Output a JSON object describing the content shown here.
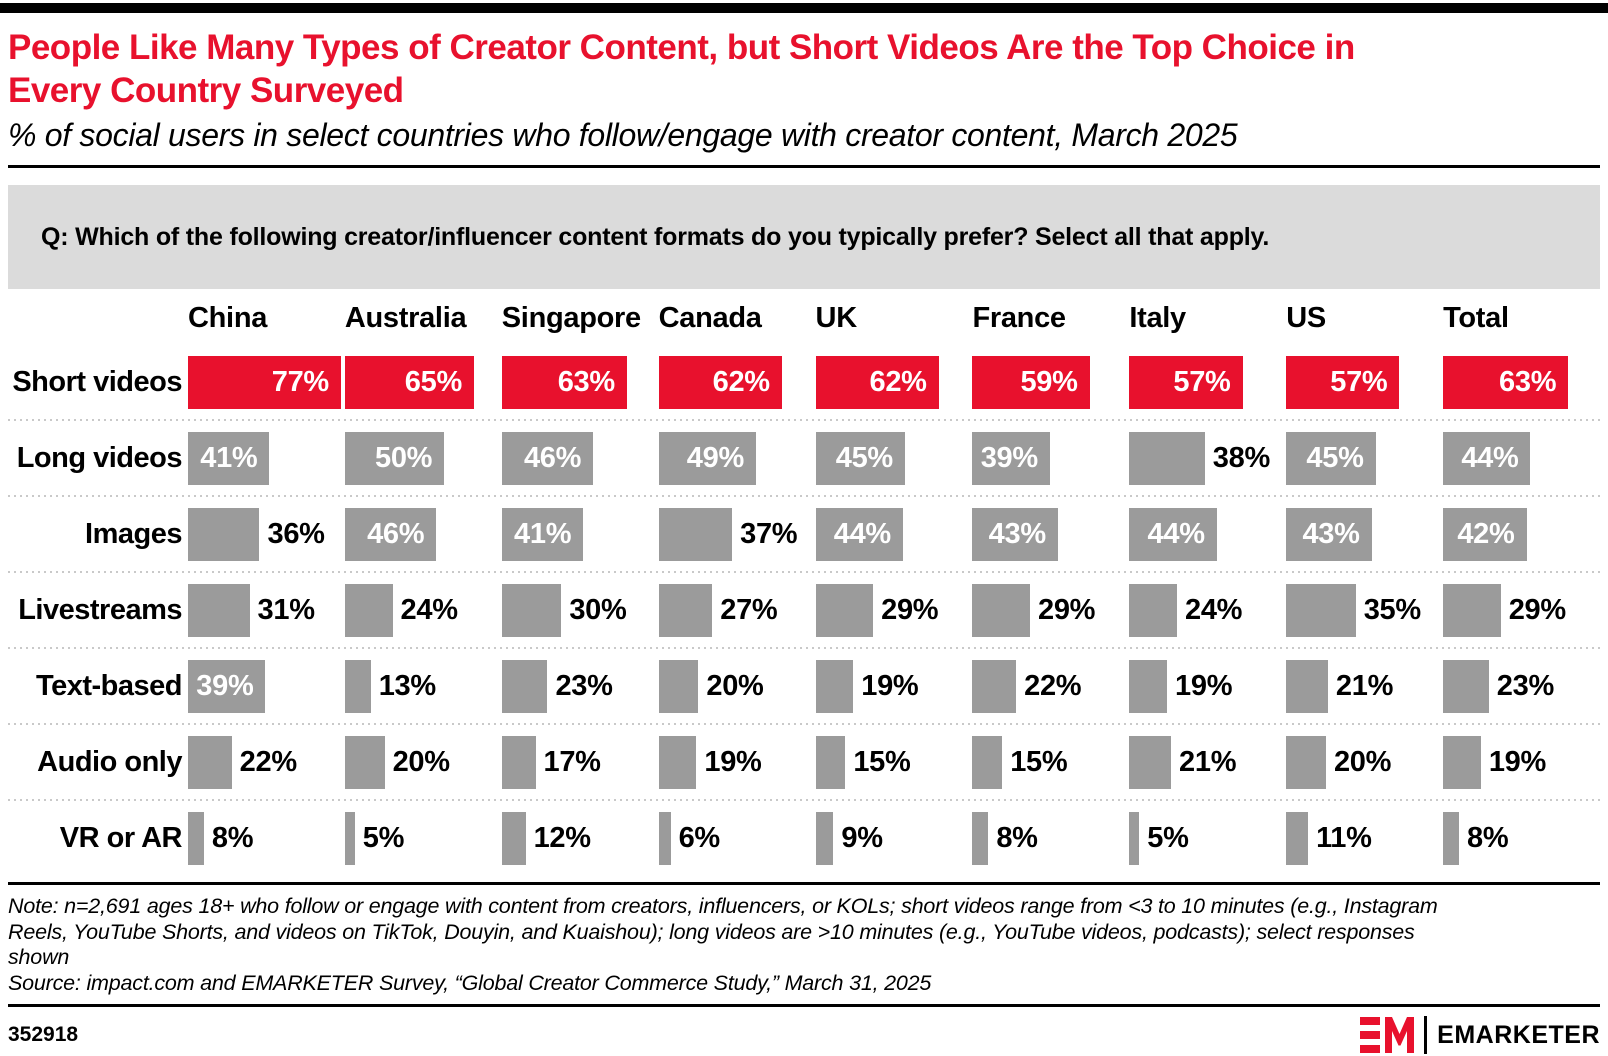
{
  "header": {
    "title_line1": "People Like Many Types of Creator Content, but Short Videos Are the Top Choice in",
    "title_line2": "Every Country Surveyed",
    "subtitle": "% of social users in select countries who follow/engage with creator content, March 2025"
  },
  "question": "Q: Which of the following creator/influencer content formats do you typically prefer? Select all that apply.",
  "chart_data": {
    "type": "bar",
    "orientation": "horizontal",
    "unit": "%",
    "columns": [
      "China",
      "Australia",
      "Singapore",
      "Canada",
      "UK",
      "France",
      "Italy",
      "US",
      "Total"
    ],
    "categories": [
      "Short videos",
      "Long videos",
      "Images",
      "Livestreams",
      "Text-based",
      "Audio only",
      "VR or AR"
    ],
    "series": [
      {
        "name": "Short videos",
        "color": "#e8112d",
        "values": [
          77,
          65,
          63,
          62,
          62,
          59,
          57,
          57,
          63
        ]
      },
      {
        "name": "Long videos",
        "color": "#9b9b9b",
        "values": [
          41,
          50,
          46,
          49,
          45,
          39,
          38,
          45,
          44
        ]
      },
      {
        "name": "Images",
        "color": "#9b9b9b",
        "values": [
          36,
          46,
          41,
          37,
          44,
          43,
          44,
          43,
          42
        ]
      },
      {
        "name": "Livestreams",
        "color": "#9b9b9b",
        "values": [
          31,
          24,
          30,
          27,
          29,
          29,
          24,
          35,
          29
        ]
      },
      {
        "name": "Text-based",
        "color": "#9b9b9b",
        "values": [
          39,
          13,
          23,
          20,
          19,
          22,
          19,
          21,
          23
        ]
      },
      {
        "name": "Audio only",
        "color": "#9b9b9b",
        "values": [
          22,
          20,
          17,
          19,
          15,
          15,
          21,
          20,
          19
        ]
      },
      {
        "name": "VR or AR",
        "color": "#9b9b9b",
        "values": [
          8,
          5,
          12,
          6,
          9,
          8,
          5,
          11,
          8
        ]
      }
    ],
    "scale_max_percent": 79,
    "label_inside_min": 39,
    "grid": "dotted row separators",
    "legend": "none"
  },
  "footer": {
    "note_lines": [
      "Note: n=2,691 ages 18+ who follow or engage with content from creators, influencers, or KOLs; short videos range from <3 to 10 minutes (e.g., Instagram",
      "Reels, YouTube Shorts, and videos on TikTok, Douyin, and Kuaishou); long videos are >10 minutes (e.g., YouTube videos, podcasts); select responses",
      "shown"
    ],
    "source": "Source: impact.com and EMARKETER Survey, “Global Creator Commerce Study,” March 31, 2025",
    "chart_id": "352918",
    "brand": "EMARKETER"
  },
  "colors": {
    "accent_red": "#e8112d",
    "bar_gray": "#9b9b9b",
    "question_box_bg": "#dbdbdb",
    "separator_dot": "#c9c9c9",
    "black": "#000000",
    "inside_label": "#ffffff"
  }
}
